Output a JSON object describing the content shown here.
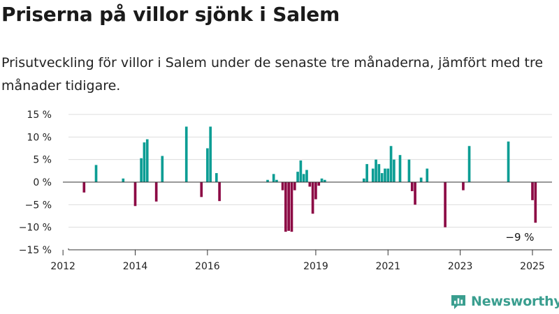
{
  "header": {
    "title": "Priserna på villor sjönk i Salem",
    "subtitle": "Prisutveckling för villor i Salem under de senaste tre månaderna, jämfört med tre månader tidigare."
  },
  "brand": {
    "name": "Newsworthy",
    "icon": "newsworthy-logo-icon"
  },
  "colors": {
    "positive": "#0c9d94",
    "negative": "#8c0a45",
    "grid": "#dddddd",
    "axis": "#333333"
  },
  "chart_data": {
    "type": "bar",
    "title": "",
    "xlabel": "",
    "ylabel": "",
    "ylim": [
      -15,
      15
    ],
    "xlim": [
      "2012-01",
      "2025-07"
    ],
    "yticks": [
      15,
      10,
      5,
      0,
      -5,
      -10,
      -15
    ],
    "ytick_labels": [
      "15 %",
      "10 %",
      "5 %",
      "0 %",
      "−5 %",
      "−10 %",
      "−15 %"
    ],
    "xticks": [
      "2012-01",
      "2014-01",
      "2016-01",
      "2019-01",
      "2021-01",
      "2023-01",
      "2025-01"
    ],
    "xtick_labels": [
      "2012",
      "2014",
      "2016",
      "2019",
      "2021",
      "2023",
      "2025"
    ],
    "grid": true,
    "annotation": "−9 %",
    "x": [
      "2012-08",
      "2012-12",
      "2013-09",
      "2014-01",
      "2014-03",
      "2014-04",
      "2014-05",
      "2014-08",
      "2014-10",
      "2015-06",
      "2015-11",
      "2016-01",
      "2016-02",
      "2016-04",
      "2016-05",
      "2017-09",
      "2017-11",
      "2017-12",
      "2018-02",
      "2018-03",
      "2018-04",
      "2018-05",
      "2018-06",
      "2018-07",
      "2018-08",
      "2018-09",
      "2018-10",
      "2018-11",
      "2018-12",
      "2019-01",
      "2019-02",
      "2019-03",
      "2019-04",
      "2020-05",
      "2020-06",
      "2020-08",
      "2020-09",
      "2020-10",
      "2020-11",
      "2020-12",
      "2021-01",
      "2021-02",
      "2021-03",
      "2021-05",
      "2021-08",
      "2021-09",
      "2021-10",
      "2021-12",
      "2022-02",
      "2022-08",
      "2023-02",
      "2023-04",
      "2024-05",
      "2025-01",
      "2025-02"
    ],
    "values": [
      -2.3,
      3.8,
      0.8,
      -5.3,
      5.3,
      8.8,
      9.5,
      -4.3,
      5.8,
      12.3,
      -3.3,
      7.5,
      12.3,
      2.0,
      -4.2,
      0.5,
      1.8,
      0.5,
      -1.8,
      -11.0,
      -10.8,
      -11.0,
      -1.8,
      2.3,
      4.8,
      1.8,
      2.7,
      -1.0,
      -7.0,
      -3.8,
      -0.8,
      0.8,
      0.5,
      0.8,
      4.0,
      3.0,
      5.0,
      4.0,
      2.0,
      3.0,
      3.0,
      8.0,
      5.0,
      6.0,
      5.0,
      -2.0,
      -5.0,
      1.0,
      3.0,
      -10.0,
      -1.8,
      8.0,
      9.0,
      -4.0,
      -9.0
    ]
  }
}
